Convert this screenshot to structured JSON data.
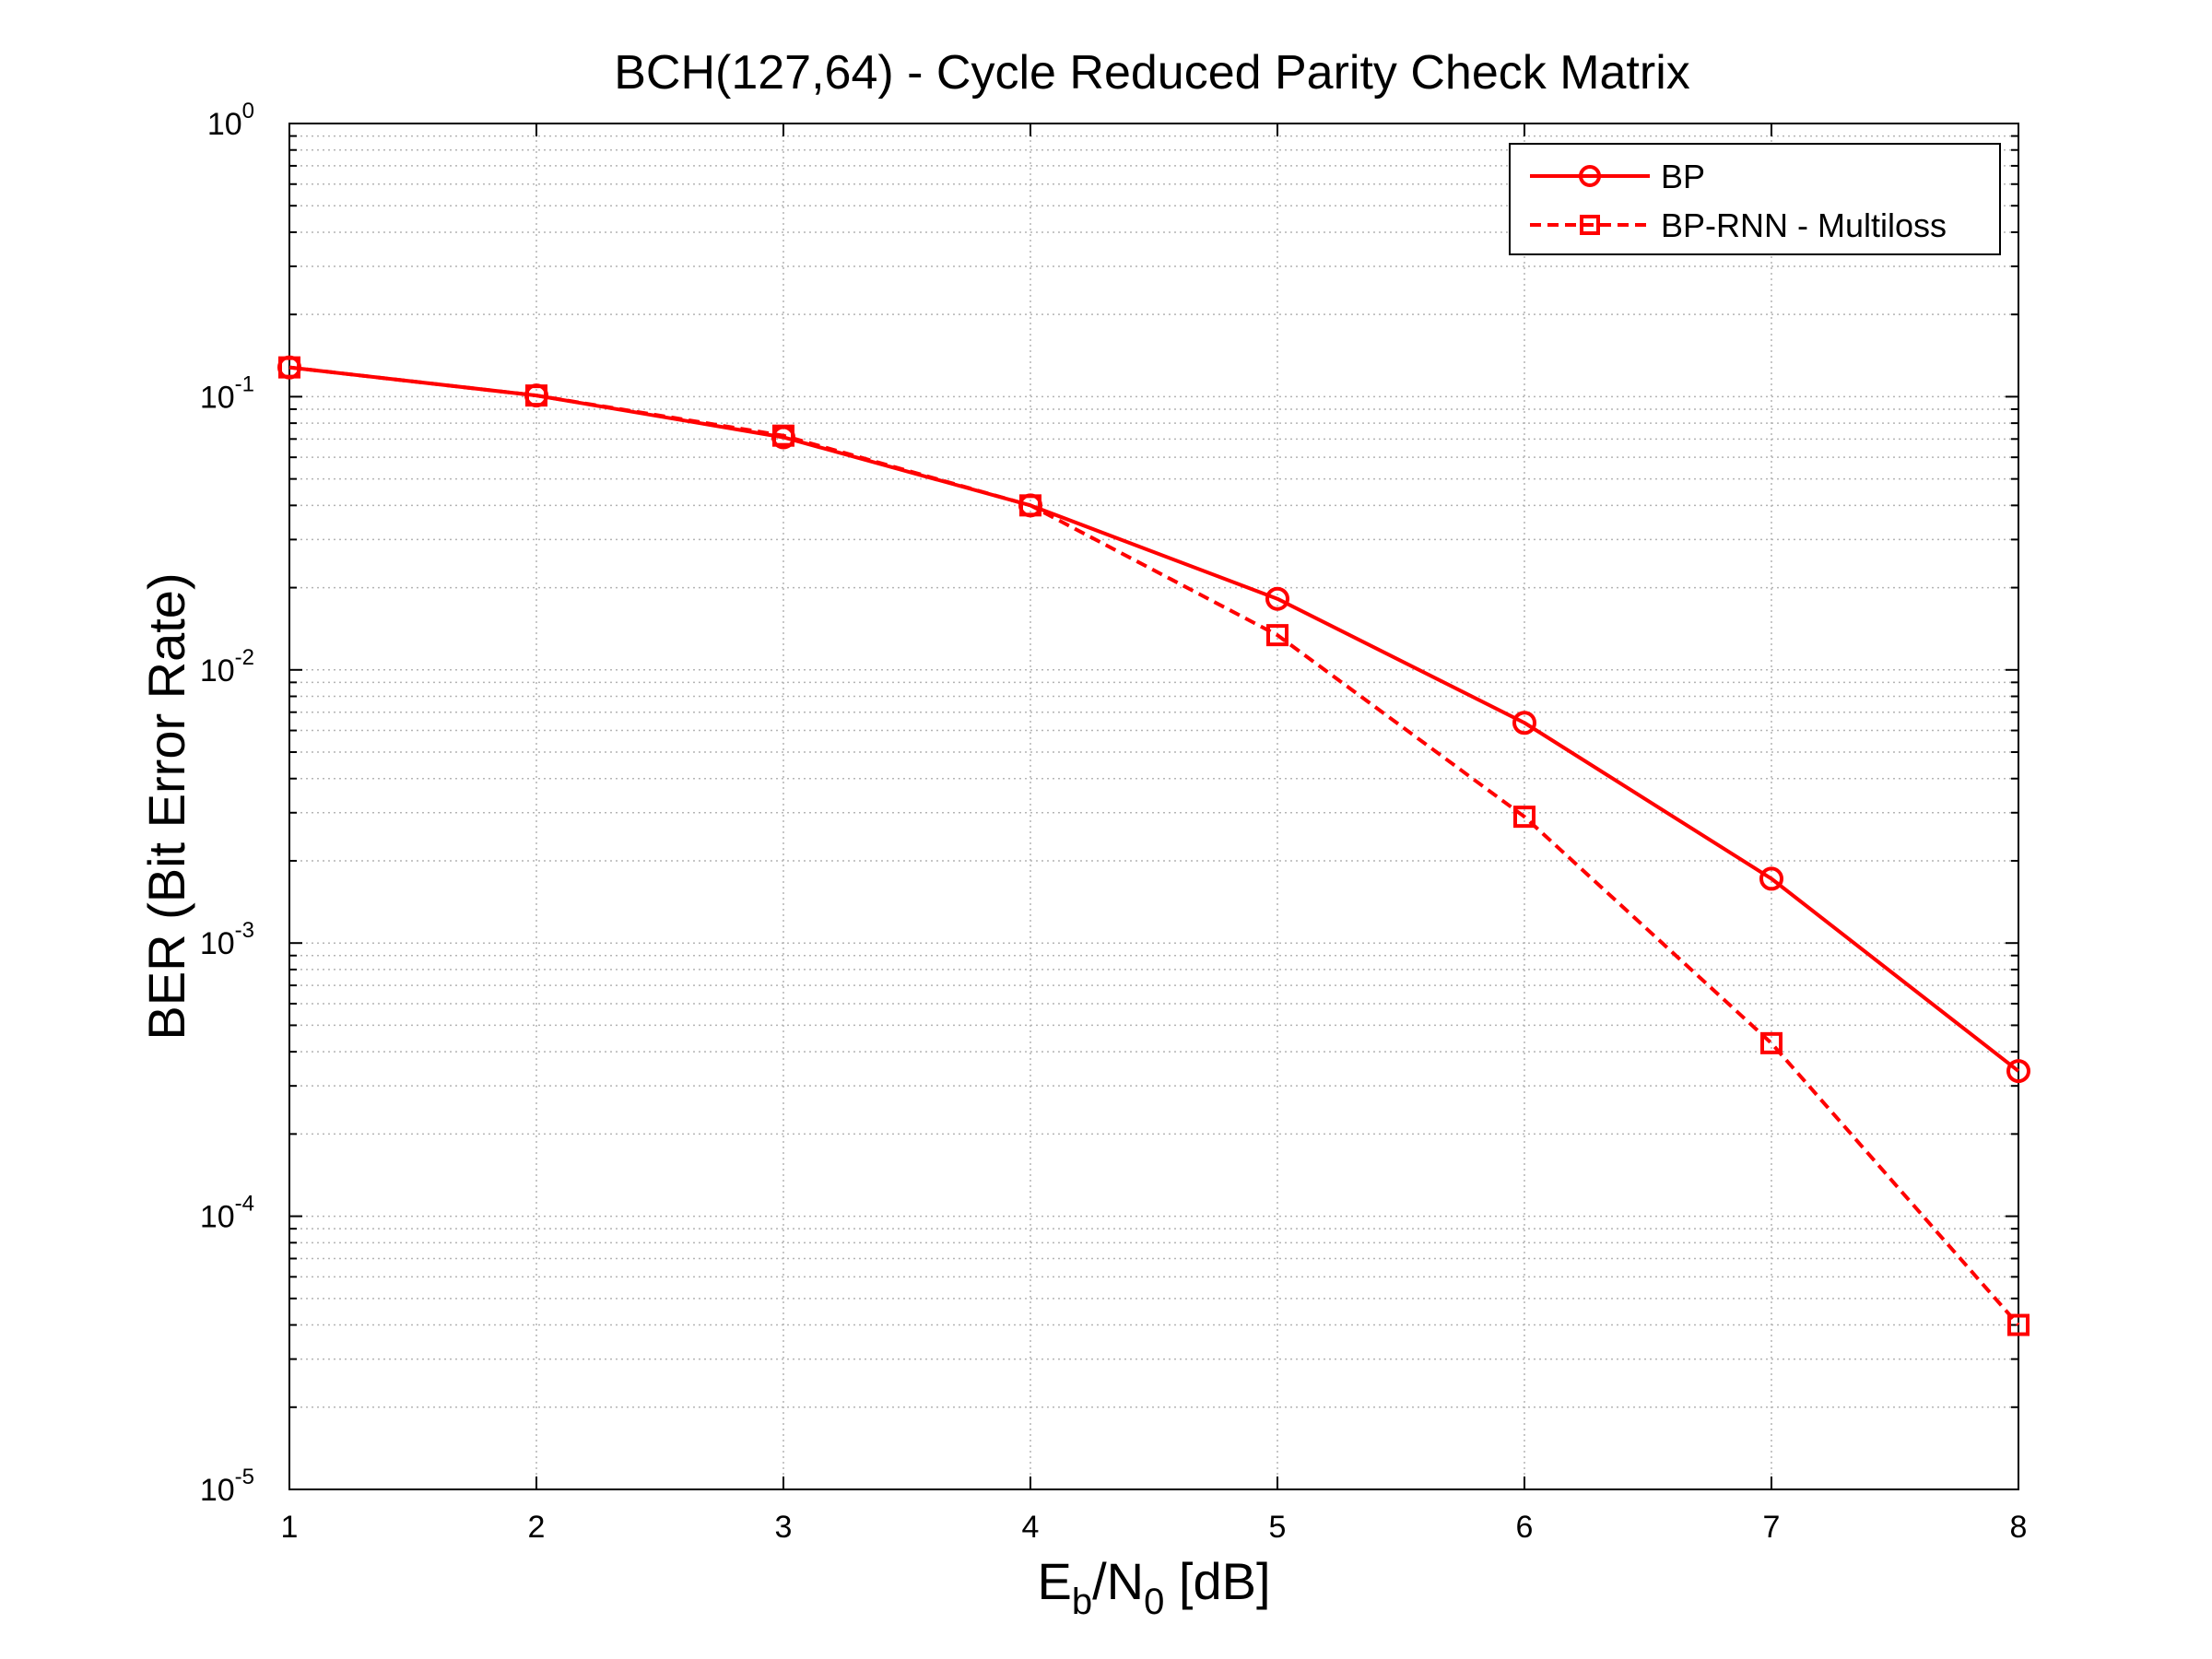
{
  "chart_data": {
    "type": "line",
    "title": "BCH(127,64) - Cycle Reduced Parity Check Matrix",
    "xlabel": {
      "main": "E",
      "sub1": "b",
      "mid": "/N",
      "sub2": "0",
      "tail": " [dB]"
    },
    "ylabel": "BER (Bit Error Rate)",
    "xlim": [
      1,
      8
    ],
    "ylim": [
      1e-05,
      1
    ],
    "yscale": "log",
    "grid": true,
    "legend_position": "top-right",
    "x_ticks": [
      "1",
      "2",
      "3",
      "4",
      "5",
      "6",
      "7",
      "8"
    ],
    "y_ticks": [
      {
        "base": "10",
        "exp": "0"
      },
      {
        "base": "10",
        "exp": "-1"
      },
      {
        "base": "10",
        "exp": "-2"
      },
      {
        "base": "10",
        "exp": "-3"
      },
      {
        "base": "10",
        "exp": "-4"
      },
      {
        "base": "10",
        "exp": "-5"
      }
    ],
    "x": [
      1,
      2,
      3,
      4,
      5,
      6,
      7,
      8
    ],
    "series": [
      {
        "name": "BP",
        "values": [
          0.128,
          0.101,
          0.071,
          0.04,
          0.0182,
          0.0064,
          0.00172,
          0.00034
        ],
        "color": "#ff0000",
        "line": "solid",
        "marker": "circle"
      },
      {
        "name": "BP-RNN - Multiloss",
        "values": [
          0.128,
          0.101,
          0.072,
          0.04,
          0.0134,
          0.0029,
          0.00043,
          4e-05
        ],
        "color": "#ff0000",
        "line": "dashed",
        "marker": "square"
      }
    ]
  }
}
